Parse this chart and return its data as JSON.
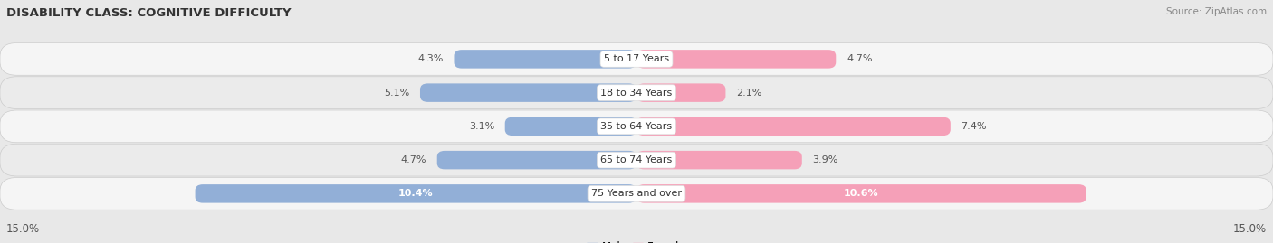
{
  "title": "DISABILITY CLASS: COGNITIVE DIFFICULTY",
  "source": "Source: ZipAtlas.com",
  "categories": [
    "5 to 17 Years",
    "18 to 34 Years",
    "35 to 64 Years",
    "65 to 74 Years",
    "75 Years and over"
  ],
  "male_values": [
    4.3,
    5.1,
    3.1,
    4.7,
    10.4
  ],
  "female_values": [
    4.7,
    2.1,
    7.4,
    3.9,
    10.6
  ],
  "max_val": 15.0,
  "male_color": "#92afd7",
  "female_color": "#f5a0b8",
  "bg_color": "#e8e8e8",
  "row_bg": "#f0f0f0",
  "row_alt_bg": "#e2e2e2",
  "title_fontsize": 9.5,
  "label_fontsize": 8,
  "tick_fontsize": 8.5,
  "legend_fontsize": 8.5,
  "category_fontsize": 8,
  "axis_label_15": "15.0%",
  "inside_label_threshold": 8.0
}
